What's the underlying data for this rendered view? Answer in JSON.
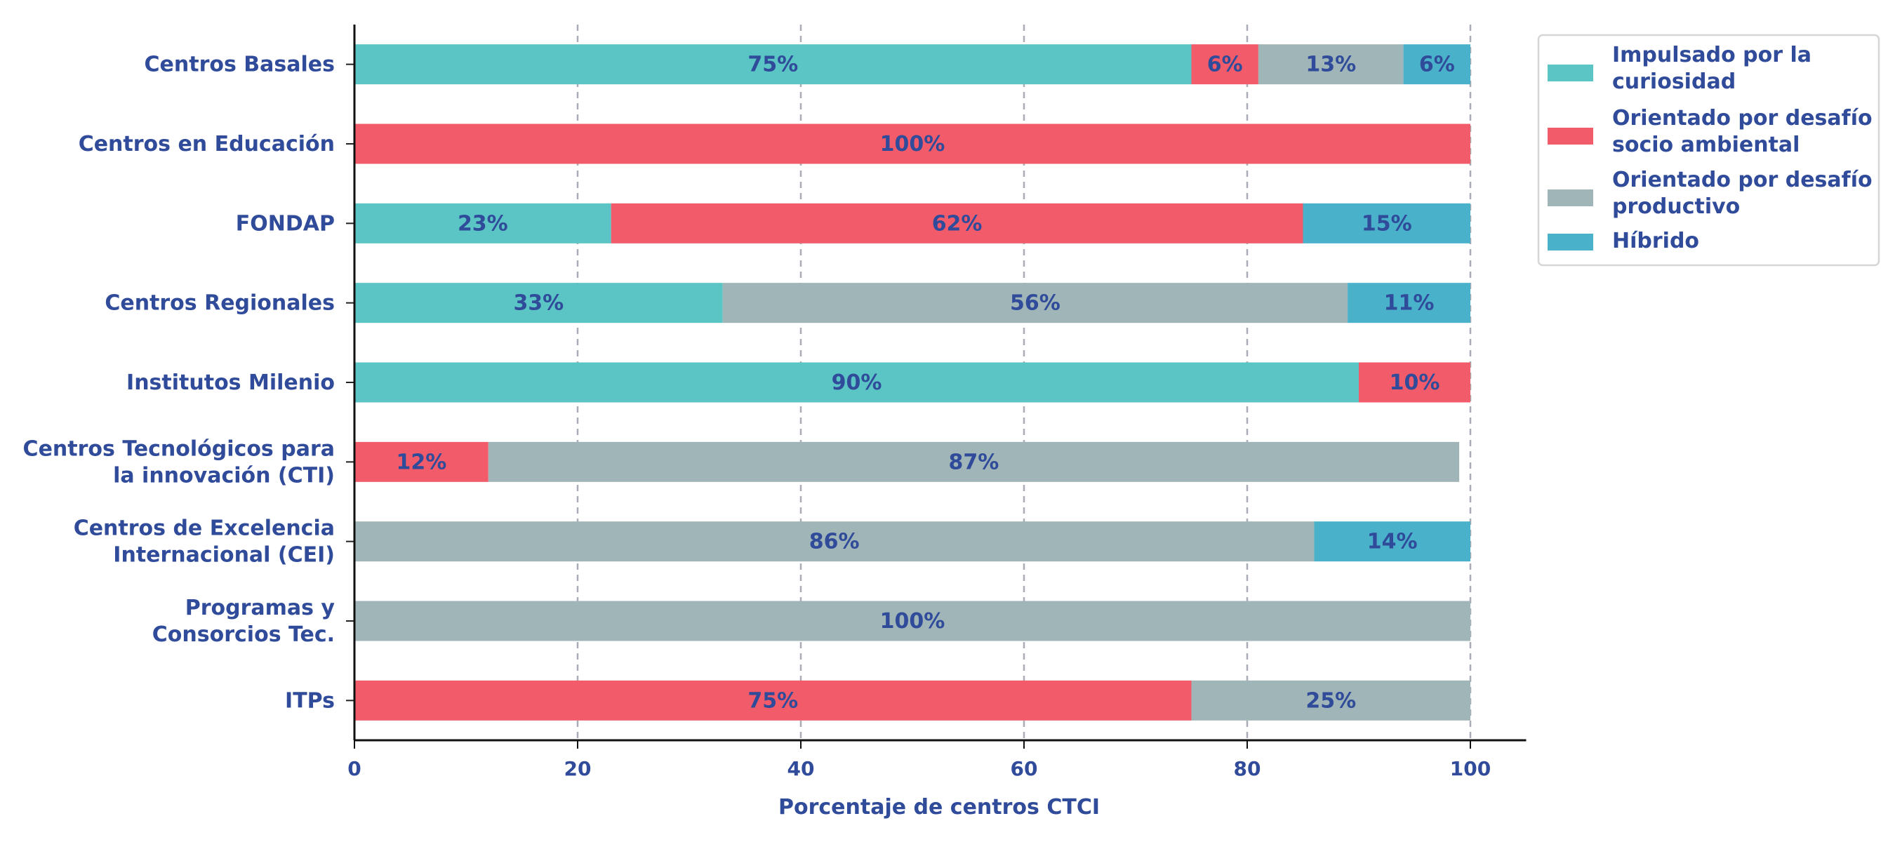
{
  "chart_data": {
    "type": "bar",
    "orientation": "horizontal",
    "stacked": true,
    "categories": [
      "Centros Basales",
      "Centros en Educación",
      "FONDAP",
      "Centros Regionales",
      "Institutos Milenio",
      "Centros Tecnológicos para\nla innovación (CTI)",
      "Centros de Excelencia\nInternacional (CEI)",
      "Programas y\nConsorcios Tec.",
      "ITPs"
    ],
    "series": [
      {
        "name": "Impulsado por la\ncuriosidad",
        "color": "#5bc4c4",
        "values": [
          75,
          0,
          23,
          33,
          90,
          0,
          0,
          0,
          0
        ]
      },
      {
        "name": "Orientado por desafío\nsocio ambiental",
        "color": "#f25c6a",
        "values": [
          6,
          100,
          62,
          0,
          10,
          12,
          0,
          0,
          75
        ]
      },
      {
        "name": "Orientado por desafío\nproductivo",
        "color": "#a0b5b7",
        "values": [
          13,
          0,
          0,
          56,
          0,
          87,
          86,
          100,
          25
        ]
      },
      {
        "name": "Híbrido",
        "color": "#4ab1cb",
        "values": [
          6,
          0,
          15,
          11,
          0,
          0,
          14,
          0,
          0
        ]
      }
    ],
    "xlabel": "Porcentaje de centros CTCI",
    "ylabel": "",
    "xlim": [
      0,
      105
    ],
    "xticks": [
      0,
      20,
      40,
      60,
      80,
      100
    ],
    "grid": "vertical-dashed",
    "legend_position": "top-right",
    "text_color": "#2f4b9a"
  }
}
